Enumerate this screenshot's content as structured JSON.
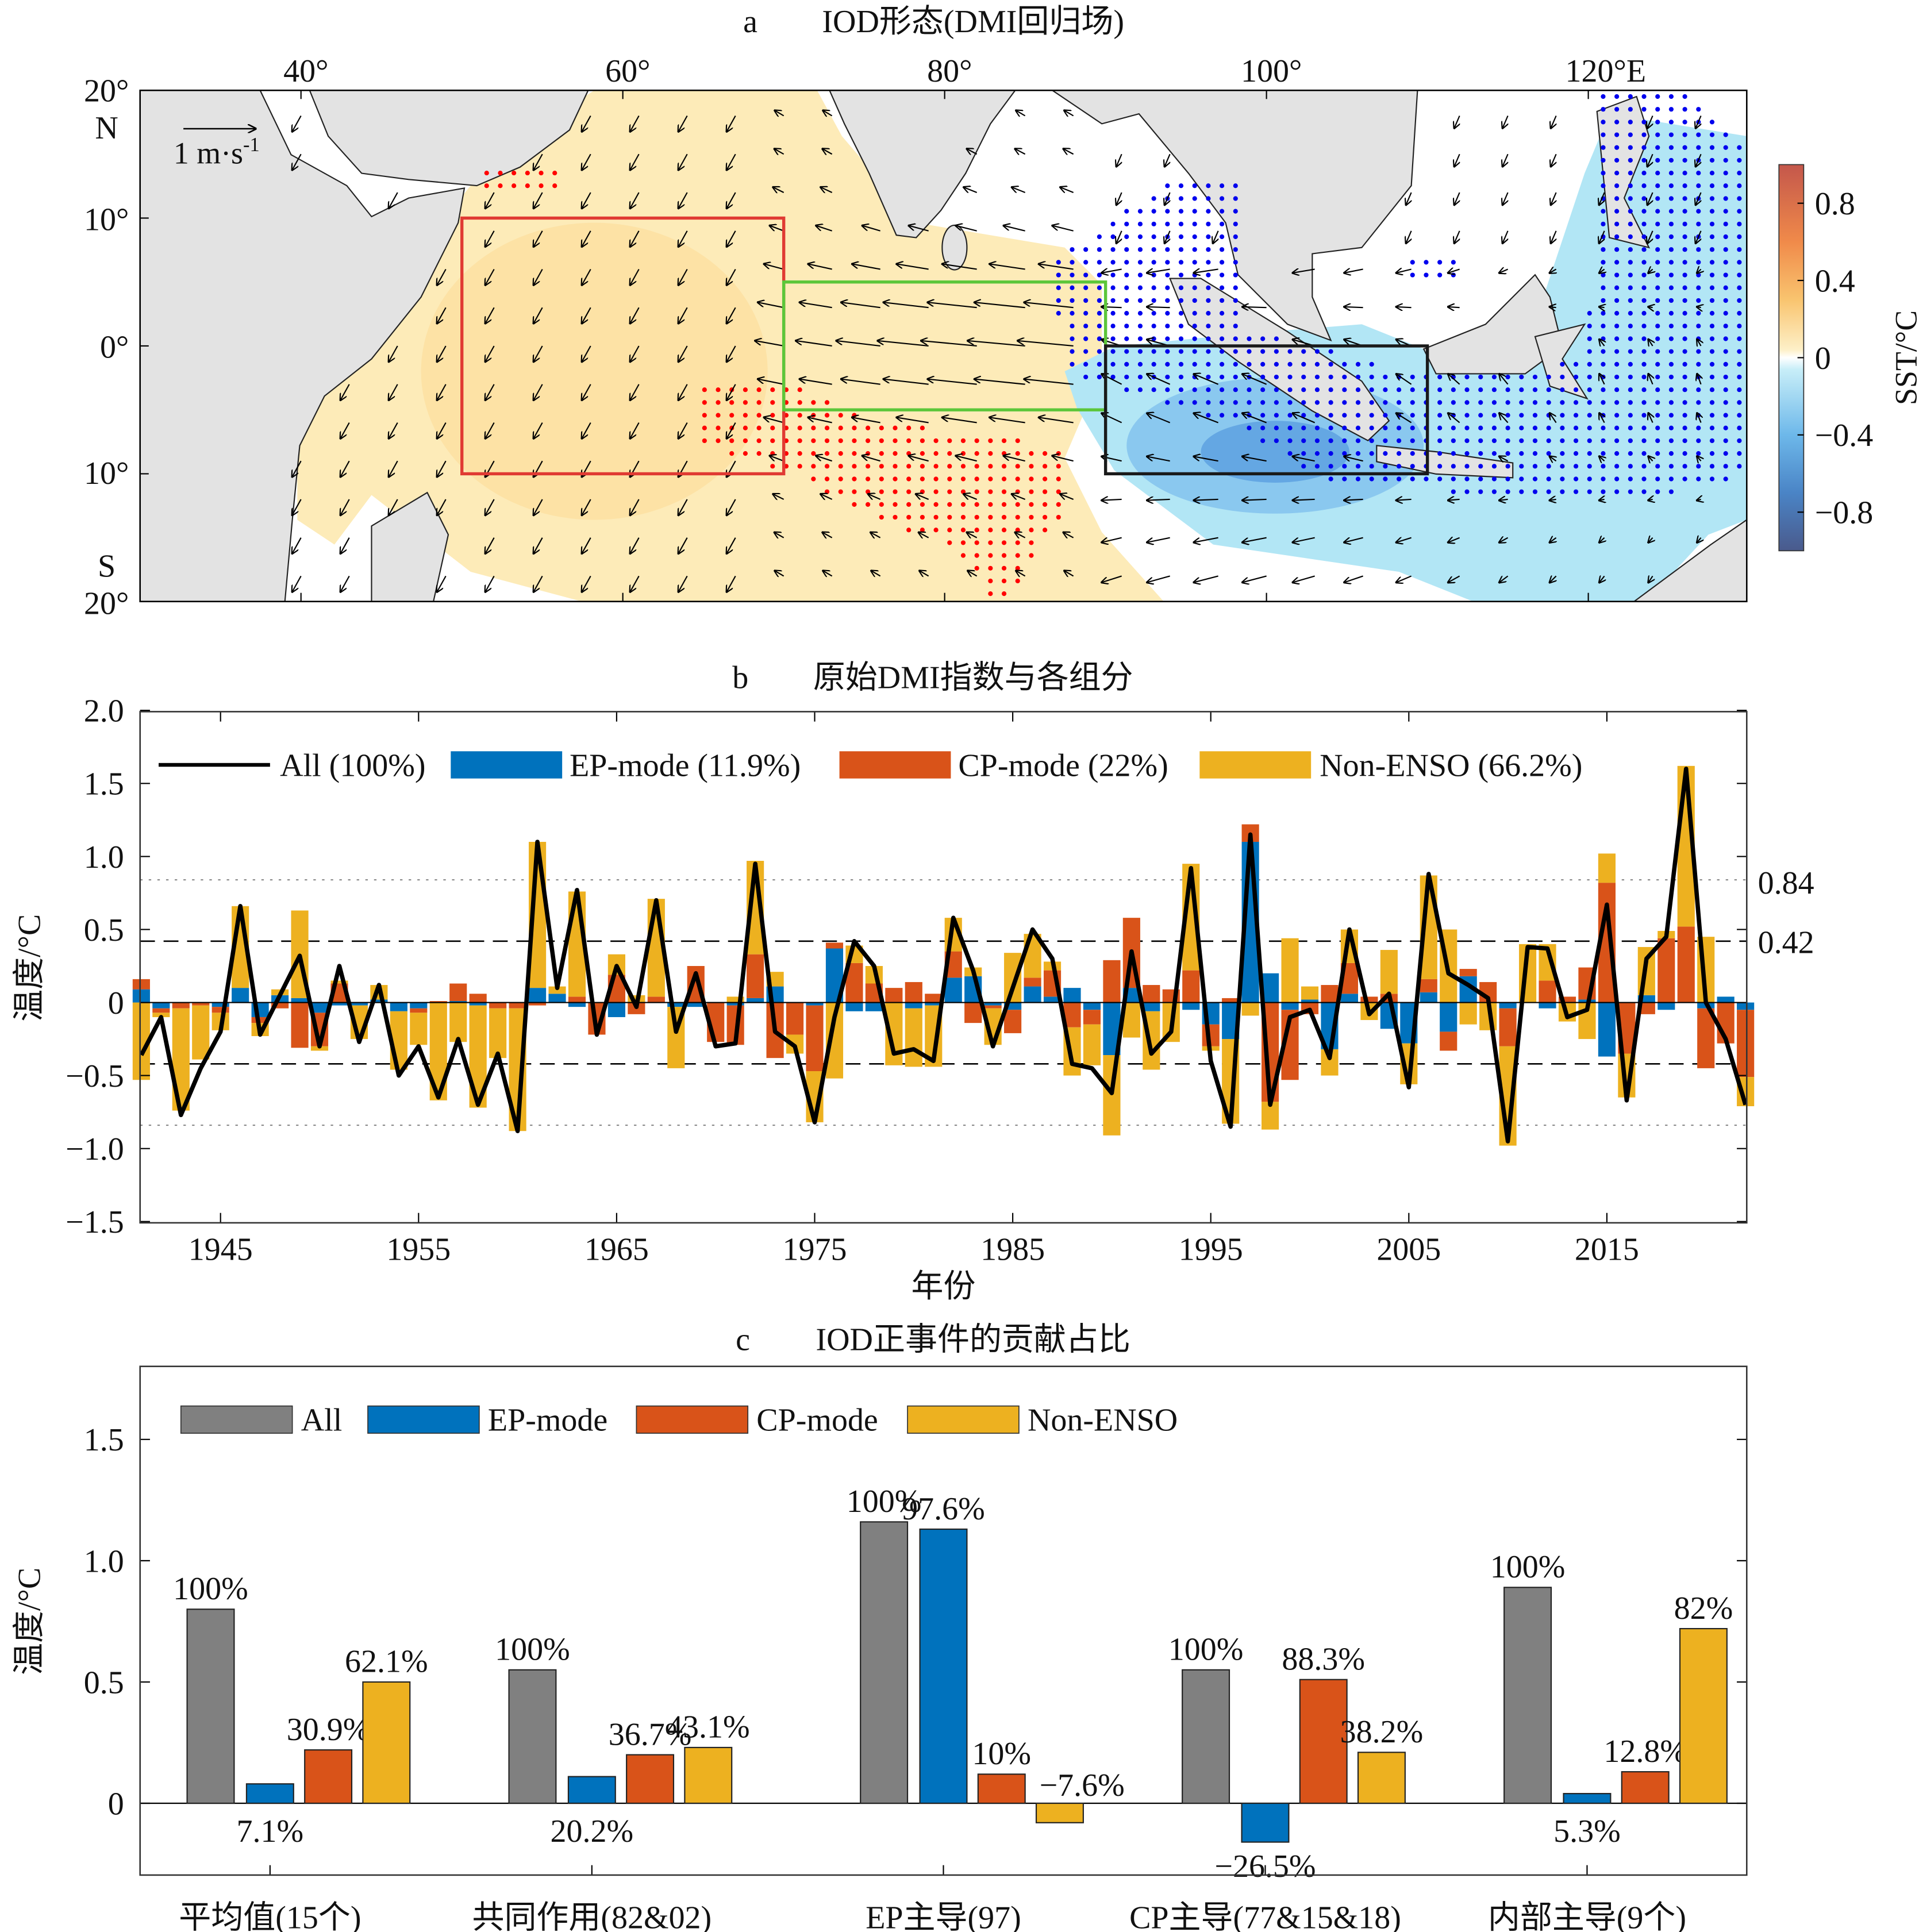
{
  "panel_a": {
    "letter": "a",
    "title": "IOD形态(DMI回归场)",
    "lon_ticks": [
      "40°",
      "60°",
      "80°",
      "100°",
      "120°E"
    ],
    "lat_ticks": [
      "20°",
      "N",
      "10°",
      "0°",
      "10°",
      "S",
      "20°"
    ],
    "ref_arrow_label": "1 m·s",
    "ref_arrow_exp": "-1",
    "colorbar": {
      "label": "SST/°C",
      "ticks": [
        "0.8",
        "0.4",
        "0",
        "−0.4",
        "−0.8"
      ],
      "range": [
        -1.0,
        1.0
      ]
    },
    "boxes": {
      "west_box_color": "#e03a33",
      "central_box_color": "#5cc63a",
      "east_box_color": "#1a1a1a"
    },
    "colors": {
      "land": "#e3e3e3",
      "positive_dots": "#ff0000",
      "negative_dots": "#0000ee"
    }
  },
  "chart_data": [
    {
      "type": "bar",
      "title": "原始DMI指数与各组分",
      "letter": "b",
      "xlabel": "年份",
      "ylabel": "温度/°C",
      "ylim": [
        -1.5,
        2.0
      ],
      "yticks": [
        "2.0",
        "1.5",
        "1.0",
        "0.5",
        "0",
        "−0.5",
        "−1.0",
        "−1.5"
      ],
      "xticks": [
        "1945",
        "1955",
        "1965",
        "1975",
        "1985",
        "1995",
        "2005",
        "2015"
      ],
      "reference_lines": {
        "dashed": 0.42,
        "dotted": 0.84,
        "dashed_label": "0.42",
        "dotted_label": "0.84"
      },
      "legend": [
        "All (100%)",
        "EP-mode (11.9%)",
        "CP-mode (22%)",
        "Non-ENSO (66.2%)"
      ],
      "legend_placement": "top-left",
      "colors": {
        "All": "#000000",
        "EP": "#0072BD",
        "CP": "#D95319",
        "NonENSO": "#EDB120"
      },
      "years": [
        1941,
        1942,
        1943,
        1944,
        1945,
        1946,
        1947,
        1948,
        1949,
        1950,
        1951,
        1952,
        1953,
        1954,
        1955,
        1956,
        1957,
        1958,
        1959,
        1960,
        1961,
        1962,
        1963,
        1964,
        1965,
        1966,
        1967,
        1968,
        1969,
        1970,
        1971,
        1972,
        1973,
        1974,
        1975,
        1976,
        1977,
        1978,
        1979,
        1980,
        1981,
        1982,
        1983,
        1984,
        1985,
        1986,
        1987,
        1988,
        1989,
        1990,
        1991,
        1992,
        1993,
        1994,
        1995,
        1996,
        1997,
        1998,
        1999,
        2000,
        2001,
        2002,
        2003,
        2004,
        2005,
        2006,
        2007,
        2008,
        2009,
        2010,
        2011,
        2012,
        2013,
        2014,
        2015,
        2016,
        2017,
        2018,
        2019,
        2020,
        2021,
        2022
      ],
      "series": [
        {
          "name": "All (100%)",
          "kind": "line",
          "values": [
            -0.36,
            -0.1,
            -0.77,
            -0.45,
            -0.2,
            0.66,
            -0.22,
            0.05,
            0.32,
            -0.3,
            0.25,
            -0.27,
            0.12,
            -0.5,
            -0.3,
            -0.65,
            -0.25,
            -0.7,
            -0.35,
            -0.88,
            1.1,
            0.1,
            0.77,
            -0.22,
            0.25,
            -0.03,
            0.7,
            -0.2,
            0.2,
            -0.3,
            -0.28,
            0.95,
            -0.2,
            -0.3,
            -0.82,
            -0.1,
            0.42,
            0.25,
            -0.35,
            -0.32,
            -0.4,
            0.58,
            0.22,
            -0.3,
            0.1,
            0.5,
            0.3,
            -0.42,
            -0.45,
            -0.62,
            0.35,
            -0.35,
            -0.2,
            0.92,
            -0.4,
            -0.85,
            1.15,
            -0.7,
            -0.1,
            -0.05,
            -0.38,
            0.5,
            -0.08,
            0.06,
            -0.58,
            0.88,
            0.2,
            0.12,
            0.03,
            -0.95,
            0.38,
            0.37,
            -0.1,
            -0.05,
            0.67,
            -0.67,
            0.3,
            0.45,
            1.6,
            0.0,
            -0.25,
            -0.7
          ]
        },
        {
          "name": "EP-mode (11.9%)",
          "kind": "bar",
          "values": [
            0.09,
            -0.04,
            0,
            0,
            -0.03,
            0.1,
            -0.1,
            0.05,
            0.03,
            -0.07,
            -0.02,
            -0.02,
            0.02,
            -0.06,
            -0.04,
            0,
            0.01,
            -0.02,
            0,
            0,
            0.1,
            0.06,
            -0.03,
            0,
            -0.1,
            0,
            0,
            -0.03,
            -0.03,
            0,
            -0.02,
            0.03,
            0.11,
            0,
            -0.02,
            0.37,
            -0.06,
            -0.06,
            0,
            -0.04,
            -0.02,
            0.17,
            0.18,
            -0.02,
            -0.05,
            0.11,
            0.04,
            0.1,
            -0.05,
            -0.36,
            0.1,
            -0.06,
            0,
            -0.05,
            -0.15,
            -0.25,
            1.1,
            0.2,
            -0.05,
            0.02,
            -0.32,
            0.06,
            0,
            -0.18,
            -0.28,
            0.07,
            -0.2,
            0.18,
            0,
            -0.04,
            0,
            -0.04,
            0,
            0.02,
            -0.37,
            0,
            0.05,
            -0.05,
            0,
            -0.04,
            0.04,
            -0.05
          ]
        },
        {
          "name": "CP-mode (22%)",
          "kind": "bar",
          "values": [
            0.07,
            -0.03,
            -0.04,
            -0.02,
            -0.04,
            0,
            -0.04,
            -0.04,
            -0.31,
            -0.23,
            0.13,
            0,
            0,
            0,
            -0.03,
            0.01,
            0.12,
            0.06,
            -0.04,
            -0.04,
            -0.02,
            0,
            0.04,
            -0.22,
            0.19,
            -0.08,
            0.04,
            0,
            0.25,
            -0.27,
            -0.27,
            0.3,
            -0.38,
            -0.22,
            -0.45,
            0.04,
            0.27,
            0.13,
            0.1,
            0.14,
            0.06,
            0.18,
            -0.14,
            -0.02,
            -0.16,
            0.06,
            0.18,
            -0.17,
            -0.1,
            0.29,
            0.48,
            0.12,
            0.09,
            0.22,
            -0.15,
            0.03,
            0.12,
            -0.68,
            -0.48,
            -0.08,
            0.12,
            0.21,
            0.04,
            0.06,
            0,
            0.09,
            -0.13,
            0.05,
            0.14,
            -0.26,
            0,
            0.15,
            0.04,
            0.22,
            0.82,
            -0.35,
            -0.08,
            0.44,
            0.52,
            -0.41,
            -0.28,
            -0.46
          ]
        },
        {
          "name": "Non-ENSO (66.2%)",
          "kind": "bar",
          "values": [
            -0.53,
            -0.03,
            -0.7,
            -0.37,
            -0.12,
            0.56,
            -0.09,
            0.04,
            0.6,
            -0.03,
            0.02,
            -0.23,
            0.1,
            -0.4,
            -0.22,
            -0.67,
            -0.27,
            -0.7,
            -0.34,
            -0.84,
            1.0,
            0.05,
            0.72,
            0,
            0.14,
            0.05,
            0.67,
            -0.42,
            0,
            0,
            0.04,
            0.64,
            0.1,
            -0.13,
            -0.35,
            -0.52,
            0.12,
            0.12,
            -0.43,
            -0.4,
            -0.42,
            0.23,
            0.06,
            -0.25,
            0.34,
            0.3,
            0.06,
            -0.33,
            -0.28,
            -0.55,
            -0.24,
            -0.4,
            -0.27,
            0.73,
            -0.03,
            -0.58,
            -0.09,
            -0.19,
            0.44,
            0.09,
            -0.18,
            0.23,
            -0.12,
            0.3,
            -0.28,
            0.71,
            0.5,
            -0.15,
            -0.19,
            -0.68,
            0.4,
            0.25,
            -0.13,
            -0.25,
            0.2,
            -0.3,
            0.33,
            0.05,
            1.1,
            0.45,
            0,
            -0.2
          ]
        }
      ]
    },
    {
      "type": "bar",
      "title": "IOD正事件的贡献占比",
      "letter": "c",
      "ylabel": "温度/°C",
      "ylim": [
        -0.3,
        1.8
      ],
      "yticks": [
        "1.5",
        "1.0",
        "0.5",
        "0"
      ],
      "legend": [
        "All",
        "EP-mode",
        "CP-mode",
        "Non-ENSO"
      ],
      "legend_placement": "top-left",
      "colors": [
        "#808080",
        "#0072BD",
        "#D95319",
        "#EDB120"
      ],
      "categories": [
        "平均值(15个)",
        "共同作用(82&02)",
        "EP主导(97)",
        "CP主导(77&15&18)",
        "内部主导(9个)"
      ],
      "series": [
        {
          "name": "All",
          "values": [
            0.8,
            0.55,
            1.16,
            0.55,
            0.89
          ],
          "labels": [
            "100%",
            "100%",
            "100%",
            "100%",
            "100%"
          ]
        },
        {
          "name": "EP-mode",
          "values": [
            0.08,
            0.11,
            1.13,
            -0.16,
            0.04
          ],
          "labels": [
            "7.1%",
            "20.2%",
            "97.6%",
            "−26.5%",
            "5.3%"
          ]
        },
        {
          "name": "CP-mode",
          "values": [
            0.22,
            0.2,
            0.12,
            0.51,
            0.13
          ],
          "labels": [
            "30.9%",
            "36.7%",
            "10%",
            "88.3%",
            "12.8%"
          ]
        },
        {
          "name": "Non-ENSO",
          "values": [
            0.5,
            0.23,
            -0.08,
            0.21,
            0.72
          ],
          "labels": [
            "62.1%",
            "43.1%",
            "−7.6%",
            "38.2%",
            "82%"
          ]
        }
      ]
    }
  ]
}
